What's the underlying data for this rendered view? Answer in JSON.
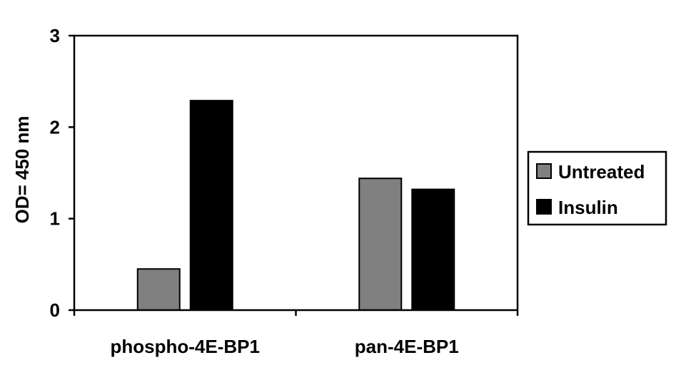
{
  "chart_data": {
    "type": "bar",
    "title": "",
    "xlabel": "",
    "ylabel": "OD= 450 nm",
    "ylim": [
      0,
      3
    ],
    "yticks": [
      "0",
      "1",
      "2",
      "3"
    ],
    "categories": [
      "phospho-4E-BP1",
      "pan-4E-BP1"
    ],
    "series": [
      {
        "name": "Untreated",
        "color": "#808080",
        "values": [
          0.45,
          1.44
        ]
      },
      {
        "name": "Insulin",
        "color": "#000000",
        "values": [
          2.29,
          1.32
        ]
      }
    ],
    "grid": false,
    "legend_position": "right"
  }
}
